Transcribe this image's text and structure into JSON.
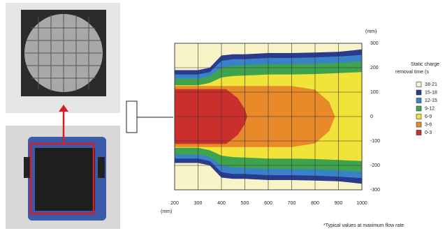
{
  "plot": {
    "y_unit": "(mm)",
    "x_unit": "(mm)",
    "yticks": [
      300,
      200,
      100,
      0,
      -100,
      -200,
      -300
    ],
    "xticks": [
      200,
      300,
      400,
      500,
      600,
      700,
      800,
      900,
      1000
    ]
  },
  "legend": {
    "title": [
      "Static charge",
      "removal time (s"
    ],
    "items": [
      {
        "label": "18-21",
        "color": "#f8f4c8"
      },
      {
        "label": "15-18",
        "color": "#2a3a8c"
      },
      {
        "label": "12-15",
        "color": "#3a82c8"
      },
      {
        "label": "9-12",
        "color": "#3fa34d"
      },
      {
        "label": "6-9",
        "color": "#f2e33a"
      },
      {
        "label": "3-6",
        "color": "#e8892a"
      },
      {
        "label": "0-3",
        "color": "#c9302c"
      }
    ]
  },
  "note": "*Typical values at maximum flow rate"
}
